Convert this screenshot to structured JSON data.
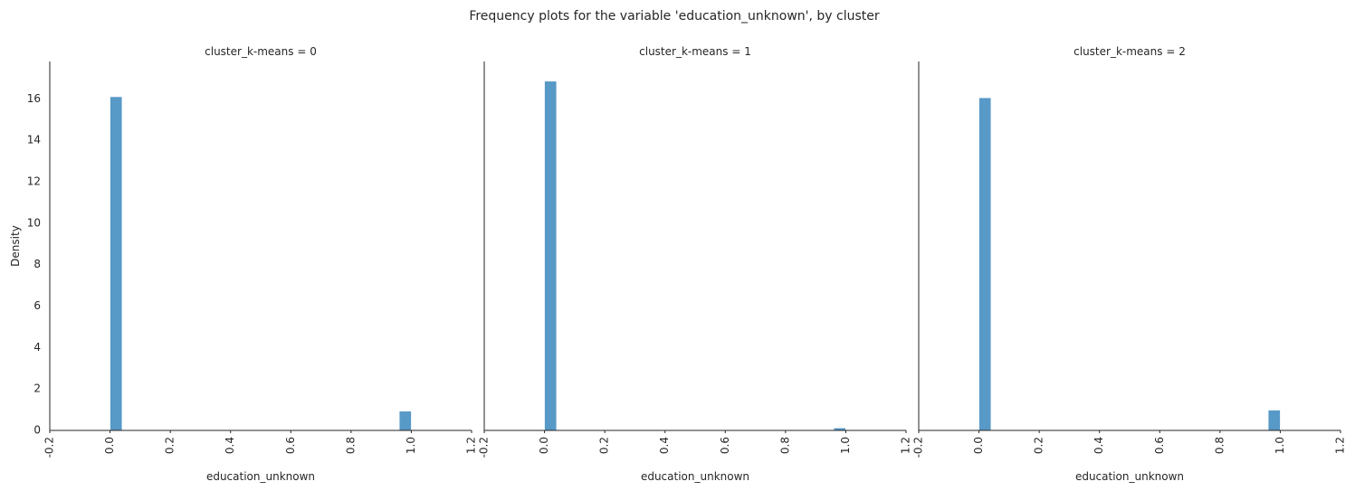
{
  "chart_data": {
    "type": "bar",
    "title": "Frequency plots for the variable 'education_unknown', by cluster",
    "xlabel": "education_unknown",
    "ylabel": "Density",
    "xlim": [
      -0.2,
      1.2
    ],
    "ylim": [
      0,
      17.8
    ],
    "x_ticks": [
      "-0.2",
      "0.0",
      "0.2",
      "0.4",
      "0.6",
      "0.8",
      "1.0",
      "1.2"
    ],
    "x_tick_values": [
      -0.2,
      0.0,
      0.2,
      0.4,
      0.6,
      0.8,
      1.0,
      1.2
    ],
    "y_ticks": [
      "0",
      "2",
      "4",
      "6",
      "8",
      "10",
      "12",
      "14",
      "16"
    ],
    "y_tick_values": [
      0,
      2,
      4,
      6,
      8,
      10,
      12,
      14,
      16
    ],
    "bin_width": 0.04,
    "bar_color": "#5799c7",
    "grid": false,
    "panels": [
      {
        "title": "cluster_k-means = 0",
        "bars": [
          {
            "x_start": 0.0,
            "value": 16.1
          },
          {
            "x_start": 0.96,
            "value": 0.93
          }
        ]
      },
      {
        "title": "cluster_k-means = 1",
        "bars": [
          {
            "x_start": 0.0,
            "value": 16.85
          },
          {
            "x_start": 0.96,
            "value": 0.12
          }
        ]
      },
      {
        "title": "cluster_k-means = 2",
        "bars": [
          {
            "x_start": 0.0,
            "value": 16.05
          },
          {
            "x_start": 0.96,
            "value": 0.98
          }
        ]
      }
    ]
  }
}
